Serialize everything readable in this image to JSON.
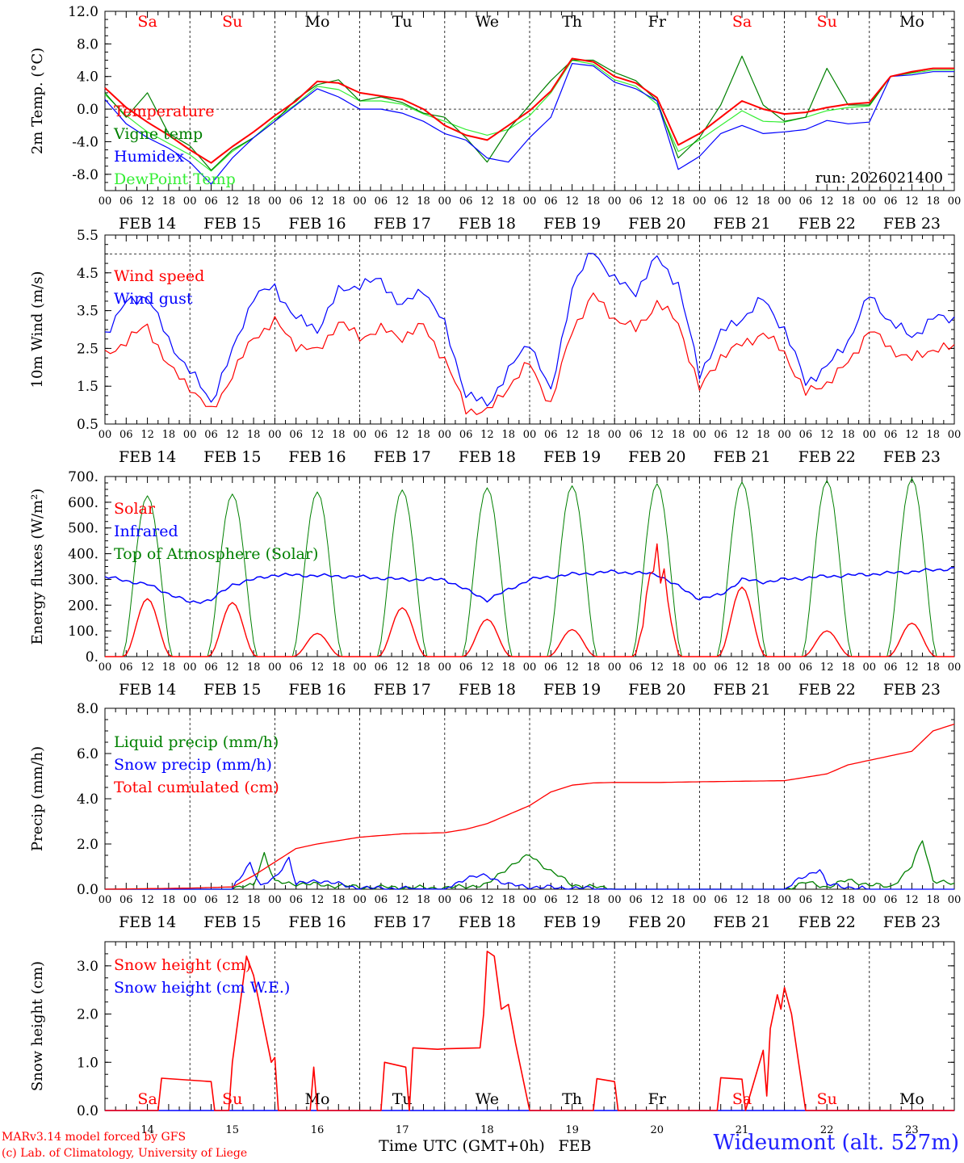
{
  "colors": {
    "red": "#ff0000",
    "blue": "#0000ff",
    "green": "#008000",
    "lightgreen": "#33ee33",
    "weekend": "#ff0000",
    "weekday": "#000000"
  },
  "time_axis": {
    "hour_ticks": [
      "00",
      "06",
      "12",
      "18"
    ],
    "final_tick": "00",
    "dates": [
      "FEB 14",
      "FEB 15",
      "FEB 16",
      "FEB 17",
      "FEB 18",
      "FEB 19",
      "FEB 20",
      "FEB 21",
      "FEB 22",
      "FEB 23"
    ],
    "day_names": [
      "Sa",
      "Su",
      "Mo",
      "Tu",
      "We",
      "Th",
      "Fr",
      "Sa",
      "Su",
      "Mo"
    ],
    "weekend": [
      true,
      true,
      false,
      false,
      false,
      false,
      false,
      true,
      true,
      false
    ],
    "day_numbers": [
      "14",
      "15",
      "16",
      "17",
      "18",
      "19",
      "20",
      "21",
      "22",
      "23"
    ],
    "xlabel": "Time UTC (GMT+0h)",
    "month": "FEB"
  },
  "footer": {
    "credit_line1": "MARv3.14 model forced by GFS",
    "credit_line2": "(c) Lab. of Climatology, University of Liege",
    "station": "Wideumont (alt. 527m)"
  },
  "chart_data": [
    {
      "id": "temp",
      "type": "line",
      "ylabel": "2m Temp. (°C)",
      "ylim": [
        -10,
        12
      ],
      "yticks": [
        -8,
        -4,
        0,
        4,
        8,
        12
      ],
      "ytick_labels": [
        "-8.0",
        "-4.0",
        "0.0",
        "4.0",
        "8.0",
        "12.0"
      ],
      "dashed_ref": 0,
      "annotation": "run: 2026021400",
      "legend": [
        "Temperature",
        "Vigne temp",
        "Humidex",
        "DewPoint Temp"
      ],
      "x_hours": [
        0,
        6,
        12,
        18,
        24,
        30,
        36,
        42,
        48,
        54,
        60,
        66,
        72,
        78,
        84,
        90,
        96,
        102,
        108,
        114,
        120,
        126,
        132,
        138,
        144,
        150,
        156,
        162,
        168,
        174,
        180,
        186,
        192,
        198,
        204,
        210,
        216,
        222,
        228,
        234
      ],
      "series": [
        {
          "name": "Temperature",
          "color": "red",
          "values": [
            2.6,
            0.2,
            -1.6,
            -3.2,
            -5.0,
            -6.6,
            -4.6,
            -2.8,
            -0.8,
            1.0,
            3.4,
            3.2,
            2.0,
            1.6,
            1.2,
            0.0,
            -2.0,
            -3.2,
            -3.8,
            -2.0,
            -0.2,
            2.2,
            6.2,
            5.8,
            4.0,
            3.2,
            1.4,
            -4.4,
            -3.0,
            -1.0,
            1.0,
            0.0,
            -0.6,
            -0.4,
            0.2,
            0.6,
            0.8,
            4.0,
            4.6,
            5.0
          ]
        },
        {
          "name": "Vigne temp",
          "color": "green",
          "values": [
            2.0,
            -1.0,
            2.0,
            -3.0,
            -4.5,
            -7.5,
            -5.0,
            -3.5,
            -1.5,
            1.2,
            3.0,
            3.6,
            1.0,
            1.5,
            0.8,
            -0.5,
            -1.0,
            -3.5,
            -6.5,
            -2.5,
            0.5,
            3.5,
            6.0,
            6.0,
            4.5,
            3.5,
            1.0,
            -6.0,
            -3.5,
            0.5,
            6.5,
            0.5,
            -1.5,
            -1.0,
            5.0,
            0.5,
            0.5,
            4.0,
            4.5,
            5.0
          ]
        },
        {
          "name": "Humidex",
          "color": "blue",
          "values": [
            1.2,
            -1.8,
            -3.5,
            -4.8,
            -6.5,
            -9.2,
            -6.0,
            -3.5,
            -1.5,
            0.5,
            2.5,
            1.5,
            0.0,
            0.0,
            -0.5,
            -1.5,
            -3.0,
            -3.8,
            -6.0,
            -6.5,
            -3.5,
            -1.0,
            5.6,
            5.3,
            3.3,
            2.5,
            1.0,
            -7.4,
            -5.8,
            -3.0,
            -2.0,
            -3.0,
            -2.8,
            -2.5,
            -1.4,
            -1.8,
            -1.6,
            4.0,
            4.2,
            4.6
          ]
        },
        {
          "name": "DewPoint Temp",
          "color": "lightgreen",
          "values": [
            1.8,
            -0.8,
            -2.8,
            -4.2,
            -5.6,
            -7.6,
            -5.2,
            -3.5,
            -1.2,
            0.6,
            2.8,
            2.4,
            1.0,
            1.0,
            0.6,
            -0.6,
            -1.5,
            -2.5,
            -3.2,
            -2.5,
            -0.8,
            2.0,
            6.0,
            5.5,
            3.6,
            2.8,
            0.6,
            -5.2,
            -3.8,
            -2.0,
            -0.2,
            -1.5,
            -1.6,
            -1.0,
            -0.2,
            0.2,
            0.4,
            4.0,
            4.4,
            4.8
          ]
        }
      ]
    },
    {
      "id": "wind",
      "type": "line",
      "ylabel": "10m Wind (m/s)",
      "ylim": [
        0.5,
        5.5
      ],
      "yticks": [
        0.5,
        1.5,
        2.5,
        3.5,
        4.5,
        5.5
      ],
      "ytick_labels": [
        "0.5",
        "1.5",
        "2.5",
        "3.5",
        "4.5",
        "5.5"
      ],
      "dashed_ref": 5.0,
      "legend": [
        "Wind speed",
        "Wind gust"
      ],
      "x_hours": [
        0,
        6,
        12,
        18,
        24,
        30,
        36,
        42,
        48,
        54,
        60,
        66,
        72,
        78,
        84,
        90,
        96,
        102,
        108,
        114,
        120,
        126,
        132,
        138,
        144,
        150,
        156,
        162,
        168,
        174,
        180,
        186,
        192,
        198,
        204,
        210,
        216,
        222,
        228,
        234
      ],
      "series": [
        {
          "name": "Wind speed",
          "color": "red",
          "values": [
            2.3,
            2.7,
            3.1,
            2.0,
            1.5,
            0.8,
            1.8,
            2.8,
            3.2,
            2.6,
            2.4,
            3.2,
            2.8,
            3.0,
            2.8,
            3.1,
            2.2,
            0.9,
            0.8,
            1.5,
            2.1,
            1.0,
            3.0,
            3.9,
            3.3,
            3.0,
            3.7,
            3.2,
            1.4,
            2.3,
            2.6,
            2.9,
            2.4,
            1.3,
            1.6,
            2.1,
            3.0,
            2.5,
            2.2,
            2.5
          ]
        },
        {
          "name": "Wind gust",
          "color": "blue",
          "values": [
            2.9,
            3.7,
            3.9,
            2.7,
            1.9,
            1.1,
            2.4,
            3.9,
            4.1,
            3.3,
            3.0,
            4.0,
            4.2,
            4.3,
            3.6,
            4.1,
            3.1,
            1.3,
            1.0,
            1.9,
            2.7,
            1.3,
            4.1,
            5.1,
            4.3,
            4.0,
            4.9,
            4.2,
            1.8,
            2.9,
            3.3,
            3.8,
            3.0,
            1.6,
            2.0,
            2.7,
            3.9,
            3.2,
            2.8,
            3.3
          ]
        }
      ]
    },
    {
      "id": "flux",
      "type": "line",
      "ylabel": "Energy fluxes (W/m²)",
      "ylim": [
        0,
        700
      ],
      "yticks": [
        0,
        100,
        200,
        300,
        400,
        500,
        600,
        700
      ],
      "ytick_labels": [
        "0.",
        "100.",
        "200.",
        "300.",
        "400.",
        "500.",
        "600.",
        "700."
      ],
      "legend": [
        "Solar",
        "Infrared",
        "Top of Atmosphere (Solar)"
      ],
      "solar_peaks": [
        225,
        210,
        90,
        190,
        145,
        105,
        440,
        270,
        100,
        130
      ],
      "toa_peaks": [
        625,
        632,
        640,
        648,
        656,
        664,
        672,
        678,
        684,
        692
      ],
      "infrared": {
        "x_hours": [
          0,
          12,
          24,
          30,
          36,
          42,
          48,
          60,
          72,
          84,
          96,
          108,
          120,
          132,
          144,
          156,
          168,
          174,
          180,
          186,
          192,
          204,
          216,
          228,
          239
        ],
        "values": [
          310,
          280,
          210,
          220,
          280,
          300,
          318,
          315,
          310,
          300,
          300,
          220,
          300,
          320,
          330,
          320,
          225,
          240,
          300,
          290,
          300,
          312,
          320,
          330,
          342
        ]
      },
      "series_colors": {
        "Solar": "red",
        "Infrared": "blue",
        "Top of Atmosphere (Solar)": "green"
      }
    },
    {
      "id": "precip",
      "type": "line",
      "ylabel": "Precip (mm/h)",
      "ylim": [
        0,
        8
      ],
      "yticks": [
        0,
        2,
        4,
        6,
        8
      ],
      "ytick_labels": [
        "0.0",
        "2.0",
        "4.0",
        "6.0",
        "8.0"
      ],
      "legend": [
        "Liquid precip (mm/h)",
        "Snow precip (mm/h)",
        "Total cumulated (cm)"
      ],
      "series": [
        {
          "name": "Total cumulated (cm)",
          "color": "red",
          "x_hours": [
            0,
            24,
            36,
            42,
            48,
            54,
            60,
            72,
            84,
            96,
            102,
            108,
            114,
            120,
            126,
            132,
            138,
            144,
            156,
            168,
            192,
            204,
            210,
            216,
            222,
            228,
            234,
            240
          ],
          "values": [
            0,
            0.05,
            0.1,
            0.6,
            1.2,
            1.8,
            2.0,
            2.3,
            2.45,
            2.5,
            2.65,
            2.9,
            3.3,
            3.7,
            4.3,
            4.6,
            4.7,
            4.72,
            4.72,
            4.75,
            4.8,
            5.1,
            5.5,
            5.7,
            5.9,
            6.1,
            7.0,
            7.3
          ]
        },
        {
          "name": "Liquid precip (mm/h)",
          "color": "green",
          "x_hours": [
            0,
            36,
            42,
            45,
            48,
            60,
            72,
            96,
            108,
            114,
            120,
            126,
            132,
            138,
            144,
            168,
            180,
            192,
            198,
            204,
            210,
            216,
            222,
            228,
            231,
            234,
            240
          ],
          "values": [
            0,
            0,
            0.2,
            1.6,
            0.3,
            0.2,
            0.1,
            0.05,
            0.2,
            1.0,
            1.5,
            0.8,
            0.2,
            0.1,
            0,
            0,
            0,
            0,
            0.3,
            0.1,
            0.4,
            0.2,
            0.1,
            1.0,
            2.2,
            0.4,
            0.2
          ]
        },
        {
          "name": "Snow precip (mm/h)",
          "color": "blue",
          "x_hours": [
            0,
            36,
            41,
            44,
            48,
            52,
            54,
            60,
            72,
            96,
            102,
            108,
            114,
            120,
            132,
            144,
            168,
            192,
            198,
            202,
            204,
            210,
            216,
            240
          ],
          "values": [
            0,
            0,
            1.2,
            0.1,
            0.5,
            1.4,
            0.2,
            0.4,
            0.05,
            0,
            0.5,
            0.6,
            0.2,
            0.1,
            0.05,
            0,
            0,
            0,
            0.6,
            0.9,
            0.2,
            0.1,
            0,
            0
          ]
        }
      ]
    },
    {
      "id": "snow",
      "type": "line",
      "ylabel": "Snow height (cm)",
      "ylim": [
        0,
        3.5
      ],
      "yticks": [
        0,
        1,
        2,
        3
      ],
      "ytick_labels": [
        "0.0",
        "1.0",
        "2.0",
        "3.0"
      ],
      "legend": [
        "Snow height (cm)",
        "Snow height (cm W.E.)"
      ],
      "series": [
        {
          "name": "Snow height (cm)",
          "color": "red",
          "x_hours": [
            0,
            15,
            16,
            30,
            31,
            35,
            36,
            40,
            42,
            47,
            48,
            49,
            58,
            59,
            60,
            78,
            79,
            85,
            86,
            87,
            94,
            96,
            106,
            107,
            108,
            110,
            112,
            114,
            116,
            120,
            121,
            138,
            139,
            144,
            145,
            173,
            174,
            180,
            181,
            186,
            187,
            188,
            190,
            191,
            192,
            194,
            196,
            198,
            200,
            202,
            204,
            205,
            220
          ],
          "values": [
            0,
            0,
            0.67,
            0.6,
            0,
            0,
            1.0,
            3.2,
            2.8,
            1.0,
            1.1,
            0,
            0,
            0.9,
            0,
            0,
            1.0,
            0.9,
            0,
            1.3,
            1.27,
            1.28,
            1.3,
            2.0,
            3.3,
            3.2,
            2.1,
            2.2,
            1.4,
            0,
            0,
            0,
            0.66,
            0.6,
            0,
            0,
            0.68,
            0.65,
            0,
            1.25,
            0.3,
            1.7,
            2.4,
            2.1,
            2.55,
            2.0,
            1.0,
            0,
            0,
            0,
            0,
            0,
            0
          ]
        },
        {
          "name": "Snow height (cm W.E.)",
          "color": "blue",
          "x_hours": [
            0,
            240
          ],
          "values": [
            0,
            0
          ]
        }
      ]
    }
  ]
}
